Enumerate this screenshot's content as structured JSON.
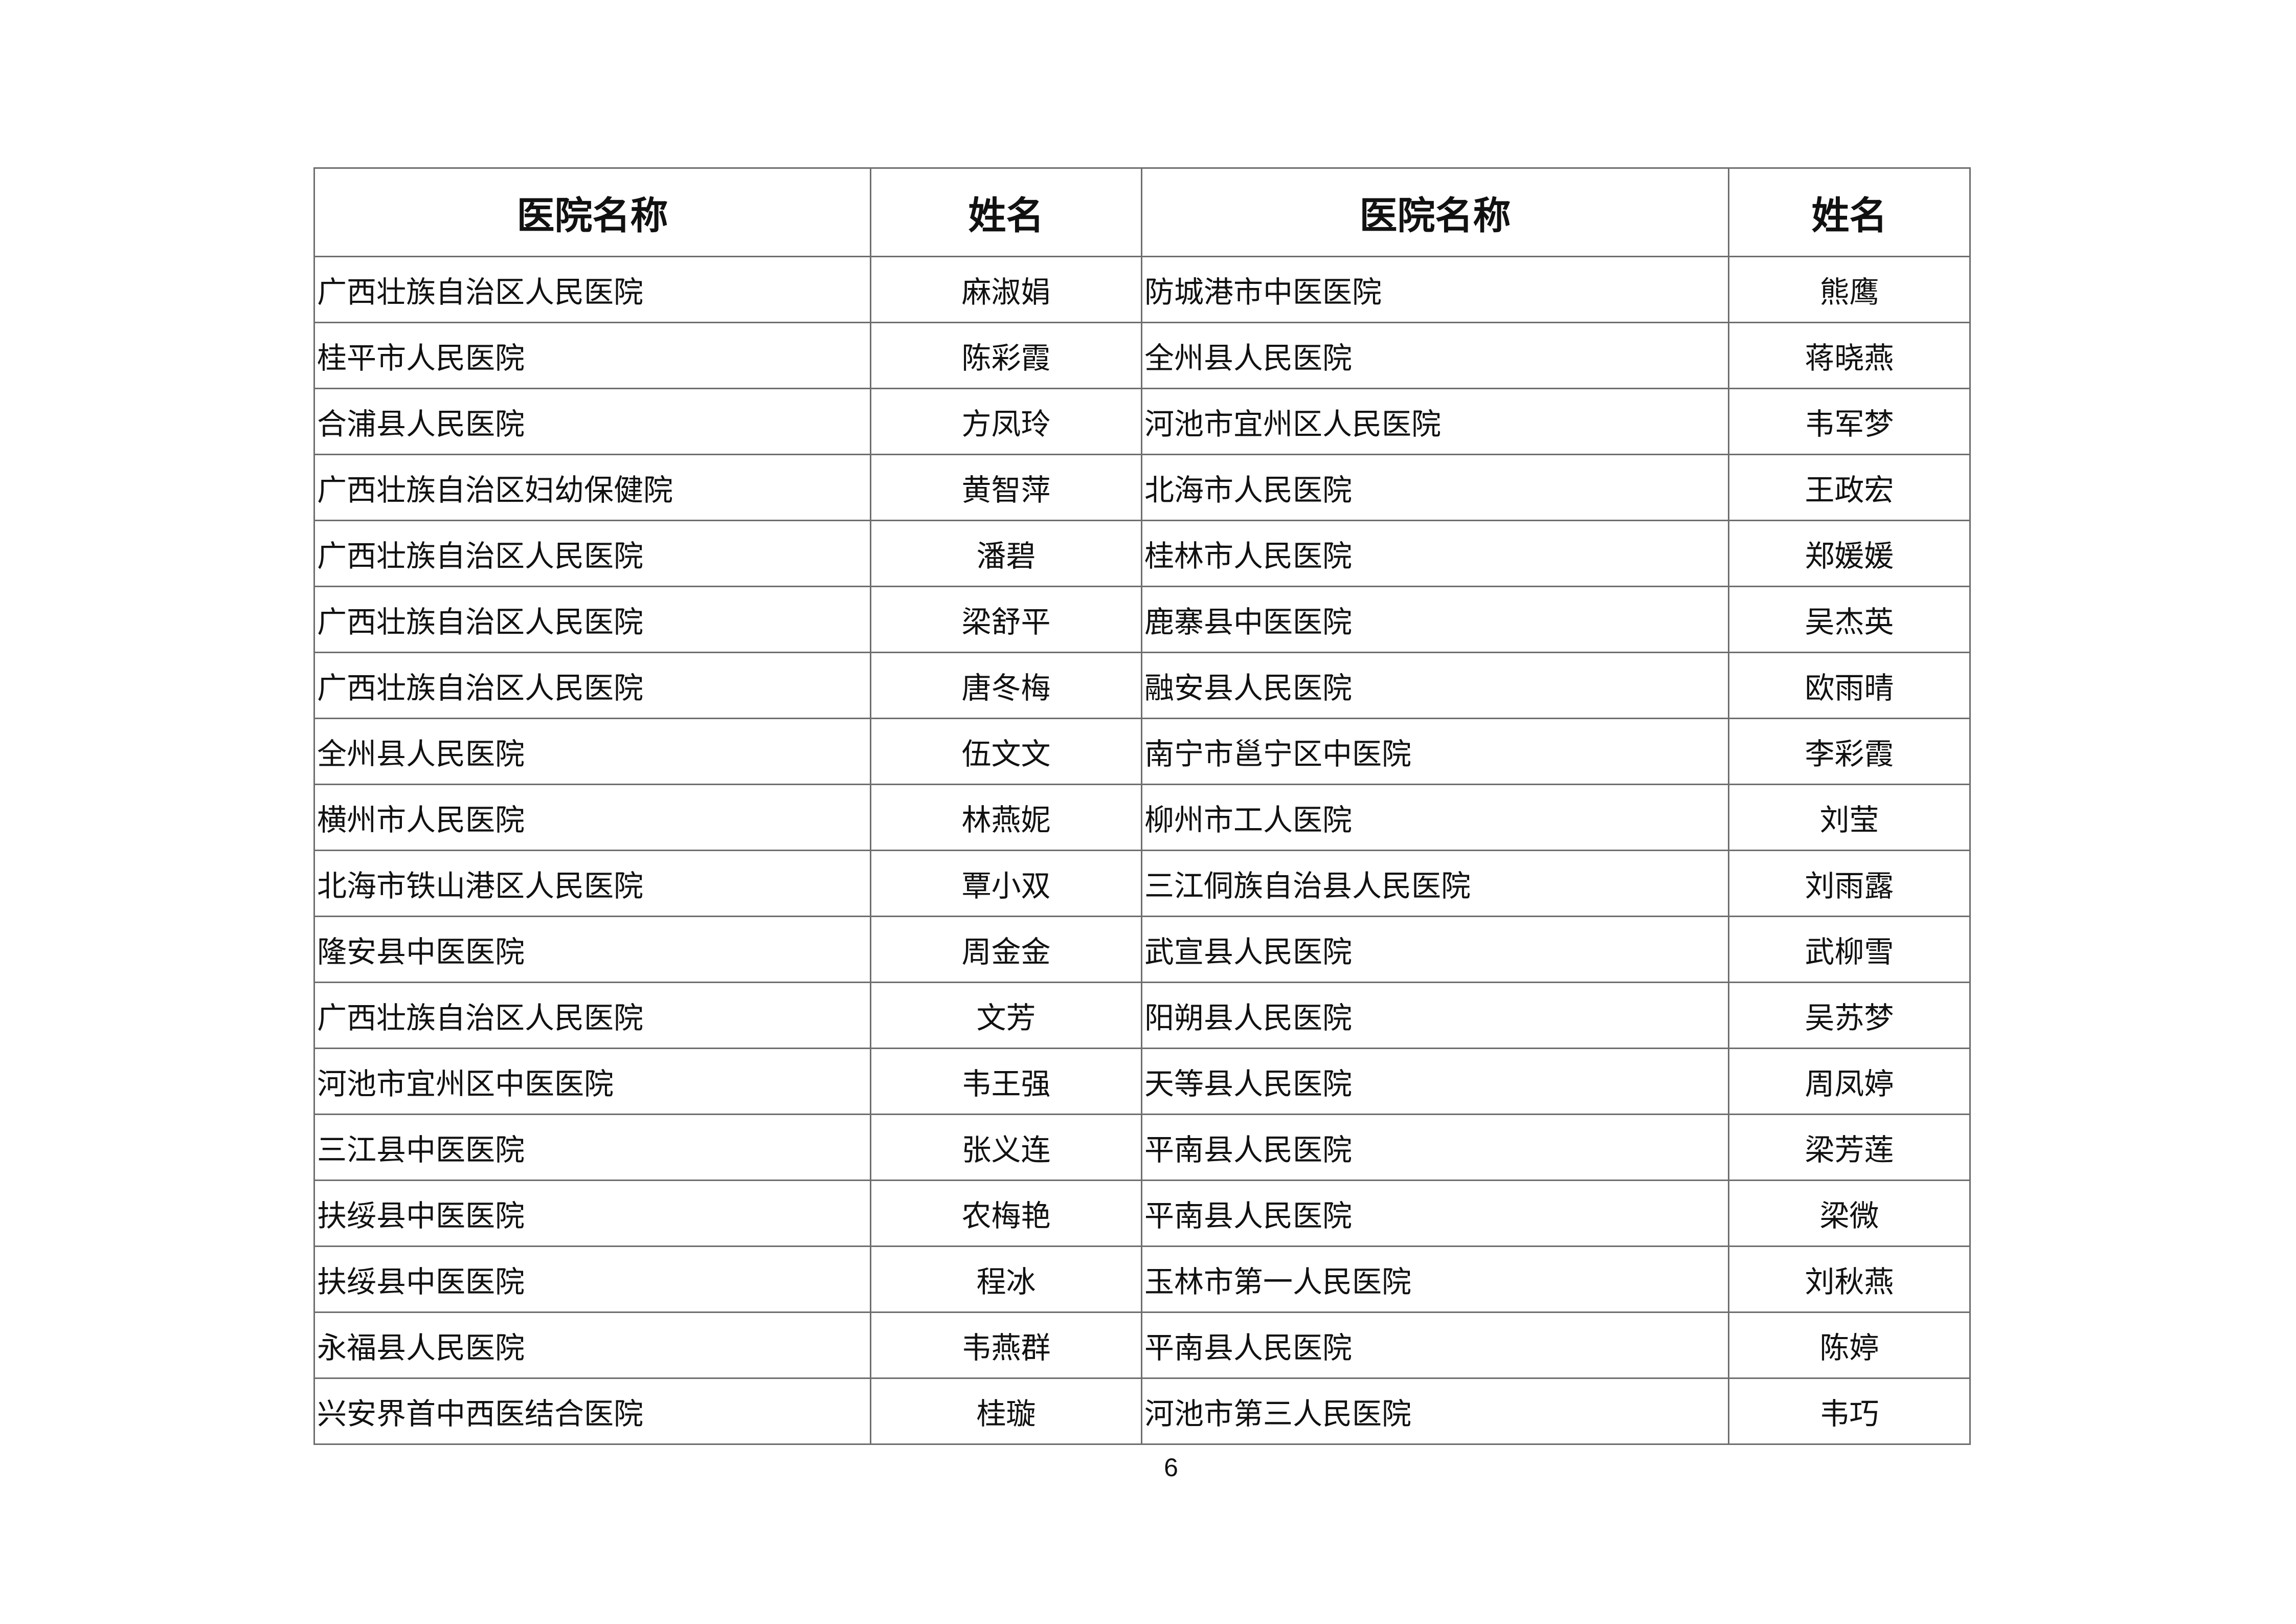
{
  "table": {
    "headers": [
      "医院名称",
      "姓名",
      "医院名称",
      "姓名"
    ],
    "rows": [
      [
        "广西壮族自治区人民医院",
        "麻淑娟",
        "防城港市中医医院",
        "熊鹰"
      ],
      [
        "桂平市人民医院",
        "陈彩霞",
        "全州县人民医院",
        "蒋晓燕"
      ],
      [
        "合浦县人民医院",
        "方凤玲",
        "河池市宜州区人民医院",
        "韦军梦"
      ],
      [
        "广西壮族自治区妇幼保健院",
        "黄智萍",
        "北海市人民医院",
        "王政宏"
      ],
      [
        "广西壮族自治区人民医院",
        "潘碧",
        "桂林市人民医院",
        "郑媛媛"
      ],
      [
        "广西壮族自治区人民医院",
        "梁舒平",
        "鹿寨县中医医院",
        "吴杰英"
      ],
      [
        "广西壮族自治区人民医院",
        "唐冬梅",
        "融安县人民医院",
        "欧雨晴"
      ],
      [
        "全州县人民医院",
        "伍文文",
        "南宁市邕宁区中医院",
        "李彩霞"
      ],
      [
        "横州市人民医院",
        "林燕妮",
        "柳州市工人医院",
        "刘莹"
      ],
      [
        "北海市铁山港区人民医院",
        "覃小双",
        "三江侗族自治县人民医院",
        "刘雨露"
      ],
      [
        "隆安县中医医院",
        "周金金",
        "武宣县人民医院",
        "武柳雪"
      ],
      [
        "广西壮族自治区人民医院",
        "文芳",
        "阳朔县人民医院",
        "吴苏梦"
      ],
      [
        "河池市宜州区中医医院",
        "韦王强",
        "天等县人民医院",
        "周凤婷"
      ],
      [
        "三江县中医医院",
        "张义连",
        "平南县人民医院",
        "梁芳莲"
      ],
      [
        "扶绥县中医医院",
        "农梅艳",
        "平南县人民医院",
        "梁微"
      ],
      [
        "扶绥县中医医院",
        "程冰",
        "玉林市第一人民医院",
        "刘秋燕"
      ],
      [
        "永福县人民医院",
        "韦燕群",
        "平南县人民医院",
        "陈婷"
      ],
      [
        "兴安界首中西医结合医院",
        "桂璇",
        "河池市第三人民医院",
        "韦巧"
      ]
    ]
  },
  "footer": {
    "page_number": "6"
  }
}
